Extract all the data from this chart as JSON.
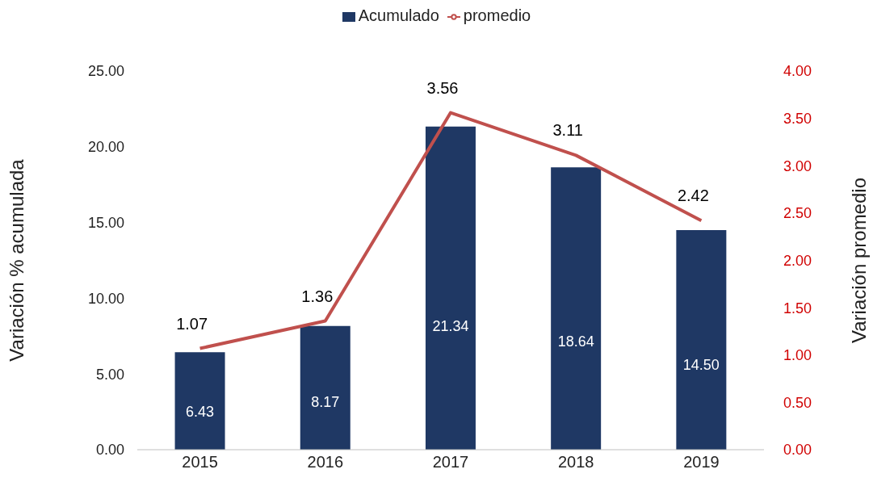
{
  "chart_data": {
    "type": "bar",
    "categories": [
      "2015",
      "2016",
      "2017",
      "2018",
      "2019"
    ],
    "series": [
      {
        "name": "Acumulado",
        "color": "#1f3864",
        "values": [
          6.43,
          8.17,
          21.34,
          18.64,
          14.5
        ],
        "value_labels": [
          "6.43",
          "8.17",
          "21.34",
          "18.64",
          "14.50"
        ]
      },
      {
        "name": "promedio",
        "type": "line",
        "axis": "y2",
        "color": "#c0504d",
        "values": [
          1.07,
          1.36,
          3.56,
          3.11,
          2.42
        ],
        "value_labels": [
          "1.07",
          "1.36",
          "3.56",
          "3.11",
          "2.42"
        ]
      }
    ],
    "ylabel": "Variación % acumulada",
    "y2label": "Variación promedio",
    "ylim": [
      0,
      25
    ],
    "yticks": [
      {
        "value": 0,
        "label": "0.00"
      },
      {
        "value": 5,
        "label": "5.00"
      },
      {
        "value": 10,
        "label": "10.00"
      },
      {
        "value": 15,
        "label": "15.00"
      },
      {
        "value": 20,
        "label": "20.00"
      },
      {
        "value": 25,
        "label": "25.00"
      }
    ],
    "y2lim": [
      0,
      4
    ],
    "y2ticks": [
      {
        "value": 0,
        "label": "0.00"
      },
      {
        "value": 0.5,
        "label": "0.50"
      },
      {
        "value": 1,
        "label": "1.00"
      },
      {
        "value": 1.5,
        "label": "1.50"
      },
      {
        "value": 2,
        "label": "2.00"
      },
      {
        "value": 2.5,
        "label": "2.50"
      },
      {
        "value": 3,
        "label": "3.00"
      },
      {
        "value": 3.5,
        "label": "3.50"
      },
      {
        "value": 4,
        "label": "4.00"
      }
    ],
    "grid": false,
    "legend": "top",
    "marker": "none",
    "line_style": "solid"
  }
}
